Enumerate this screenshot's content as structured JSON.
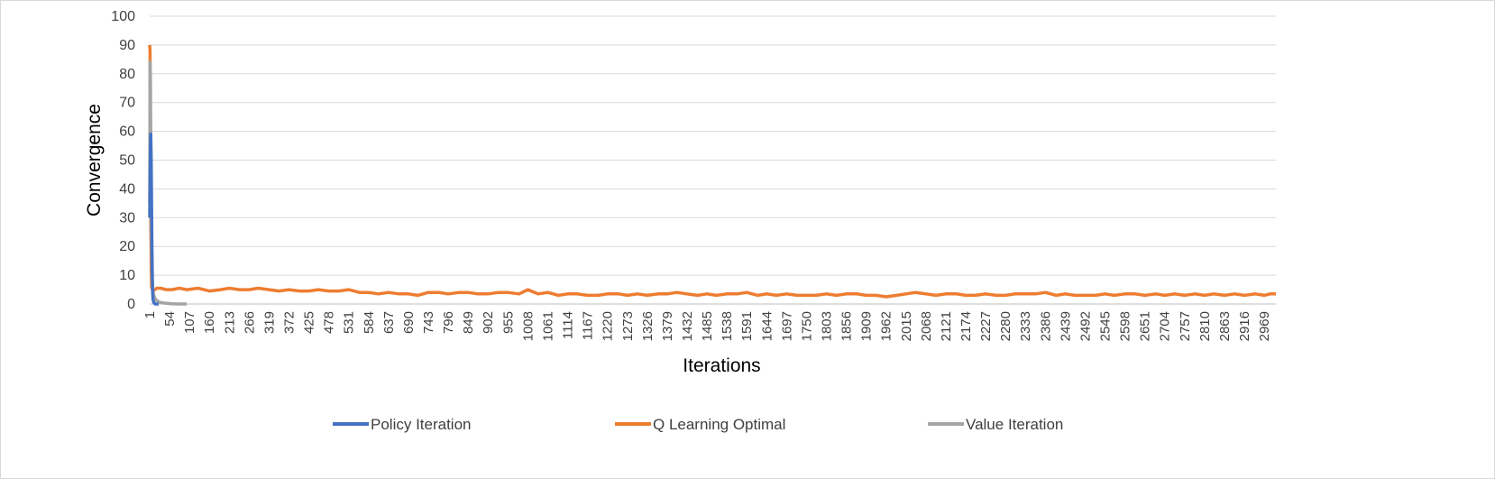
{
  "chart_data": {
    "type": "line",
    "title": "",
    "xlabel": "Iterations",
    "ylabel": "Convergence",
    "xlim": [
      1,
      3000
    ],
    "ylim": [
      0,
      100
    ],
    "y_ticks": [
      0,
      10,
      20,
      30,
      40,
      50,
      60,
      70,
      80,
      90,
      100
    ],
    "x_tick_labels": [
      "1",
      "54",
      "107",
      "160",
      "213",
      "266",
      "319",
      "372",
      "425",
      "478",
      "531",
      "584",
      "637",
      "690",
      "743",
      "796",
      "849",
      "902",
      "955",
      "1008",
      "1061",
      "1114",
      "1167",
      "1220",
      "1273",
      "1326",
      "1379",
      "1432",
      "1485",
      "1538",
      "1591",
      "1644",
      "1697",
      "1750",
      "1803",
      "1856",
      "1909",
      "1962",
      "2015",
      "2068",
      "2121",
      "2174",
      "2227",
      "2280",
      "2333",
      "2386",
      "2439",
      "2492",
      "2545",
      "2598",
      "2651",
      "2704",
      "2757",
      "2810",
      "2863",
      "2916",
      "2969"
    ],
    "grid": true,
    "legend_position": "bottom",
    "series": [
      {
        "name": "Policy Iteration",
        "color": "#4472c4",
        "x": [
          1,
          2,
          3,
          4,
          5,
          6,
          7,
          8,
          9,
          10,
          12,
          14,
          16,
          18,
          20,
          25
        ],
        "y": [
          30,
          42,
          55,
          59,
          50,
          35,
          20,
          10,
          4,
          1.5,
          0.5,
          0.2,
          0,
          0,
          0,
          0
        ]
      },
      {
        "name": "Q Learning Optimal",
        "color": "#ed7d31",
        "x": [
          1,
          2,
          3,
          4,
          5,
          6,
          8,
          10,
          15,
          20,
          30,
          45,
          60,
          80,
          100,
          130,
          160,
          190,
          213,
          240,
          266,
          290,
          319,
          345,
          372,
          400,
          425,
          450,
          478,
          505,
          531,
          560,
          584,
          610,
          637,
          665,
          690,
          715,
          743,
          770,
          796,
          825,
          849,
          875,
          902,
          930,
          955,
          985,
          1008,
          1035,
          1061,
          1090,
          1114,
          1140,
          1167,
          1195,
          1220,
          1250,
          1273,
          1300,
          1326,
          1355,
          1379,
          1405,
          1432,
          1460,
          1485,
          1510,
          1538,
          1565,
          1591,
          1620,
          1644,
          1670,
          1697,
          1725,
          1750,
          1775,
          1803,
          1830,
          1856,
          1885,
          1909,
          1935,
          1962,
          1990,
          2015,
          2040,
          2068,
          2095,
          2121,
          2150,
          2174,
          2200,
          2227,
          2255,
          2280,
          2305,
          2333,
          2360,
          2386,
          2415,
          2439,
          2465,
          2492,
          2520,
          2545,
          2570,
          2598,
          2625,
          2651,
          2680,
          2704,
          2730,
          2757,
          2785,
          2810,
          2835,
          2863,
          2890,
          2916,
          2945,
          2969,
          2985,
          3000
        ],
        "y": [
          90,
          88,
          60,
          30,
          12,
          6,
          5,
          4.5,
          5,
          5.5,
          5.5,
          5,
          5,
          5.5,
          5,
          5.5,
          4.5,
          5,
          5.5,
          5,
          5,
          5.5,
          5,
          4.5,
          5,
          4.5,
          4.5,
          5,
          4.5,
          4.5,
          5,
          4,
          4,
          3.5,
          4,
          3.5,
          3.5,
          3,
          4,
          4,
          3.5,
          4,
          4,
          3.5,
          3.5,
          4,
          4,
          3.5,
          5,
          3.5,
          4,
          3,
          3.5,
          3.5,
          3,
          3,
          3.5,
          3.5,
          3,
          3.5,
          3,
          3.5,
          3.5,
          4,
          3.5,
          3,
          3.5,
          3,
          3.5,
          3.5,
          4,
          3,
          3.5,
          3,
          3.5,
          3,
          3,
          3,
          3.5,
          3,
          3.5,
          3.5,
          3,
          3,
          2.5,
          3,
          3.5,
          4,
          3.5,
          3,
          3.5,
          3.5,
          3,
          3,
          3.5,
          3,
          3,
          3.5,
          3.5,
          3.5,
          4,
          3,
          3.5,
          3,
          3,
          3,
          3.5,
          3,
          3.5,
          3.5,
          3,
          3.5,
          3,
          3.5,
          3,
          3.5,
          3,
          3.5,
          3,
          3.5,
          3,
          3.5,
          3,
          3.5,
          3.5
        ]
      },
      {
        "name": "Value Iteration",
        "color": "#a5a5a5",
        "x": [
          1,
          2,
          3,
          4,
          5,
          6,
          7,
          8,
          10,
          12,
          15,
          20,
          25,
          30,
          40,
          60,
          80,
          100
        ],
        "y": [
          35,
          84,
          80,
          60,
          35,
          20,
          12,
          8,
          4.5,
          3,
          2,
          1.2,
          0.8,
          0.5,
          0.3,
          0.1,
          0,
          0
        ]
      }
    ]
  }
}
